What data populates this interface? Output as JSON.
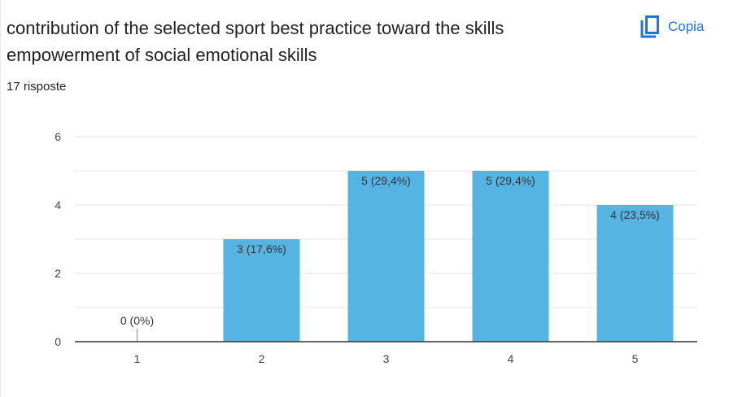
{
  "header": {
    "title": "contribution of the selected sport best practice toward the skills empowerment of social emotional skills",
    "response_count": "17 risposte",
    "copy_label": "Copia"
  },
  "colors": {
    "bar": "#56b4e3",
    "accent": "#1a73e8",
    "grid": "#e6e6e6"
  },
  "chart_data": {
    "type": "bar",
    "categories": [
      "1",
      "2",
      "3",
      "4",
      "5"
    ],
    "values": [
      0,
      3,
      5,
      5,
      4
    ],
    "data_labels": [
      "0 (0%)",
      "3 (17,6%)",
      "5 (29,4%)",
      "5 (29,4%)",
      "4 (23,5%)"
    ],
    "y_ticks": [
      "0",
      "2",
      "4",
      "6"
    ],
    "ylim": [
      0,
      6
    ],
    "grid": true,
    "legend": "none",
    "title": "",
    "xlabel": "",
    "ylabel": ""
  }
}
